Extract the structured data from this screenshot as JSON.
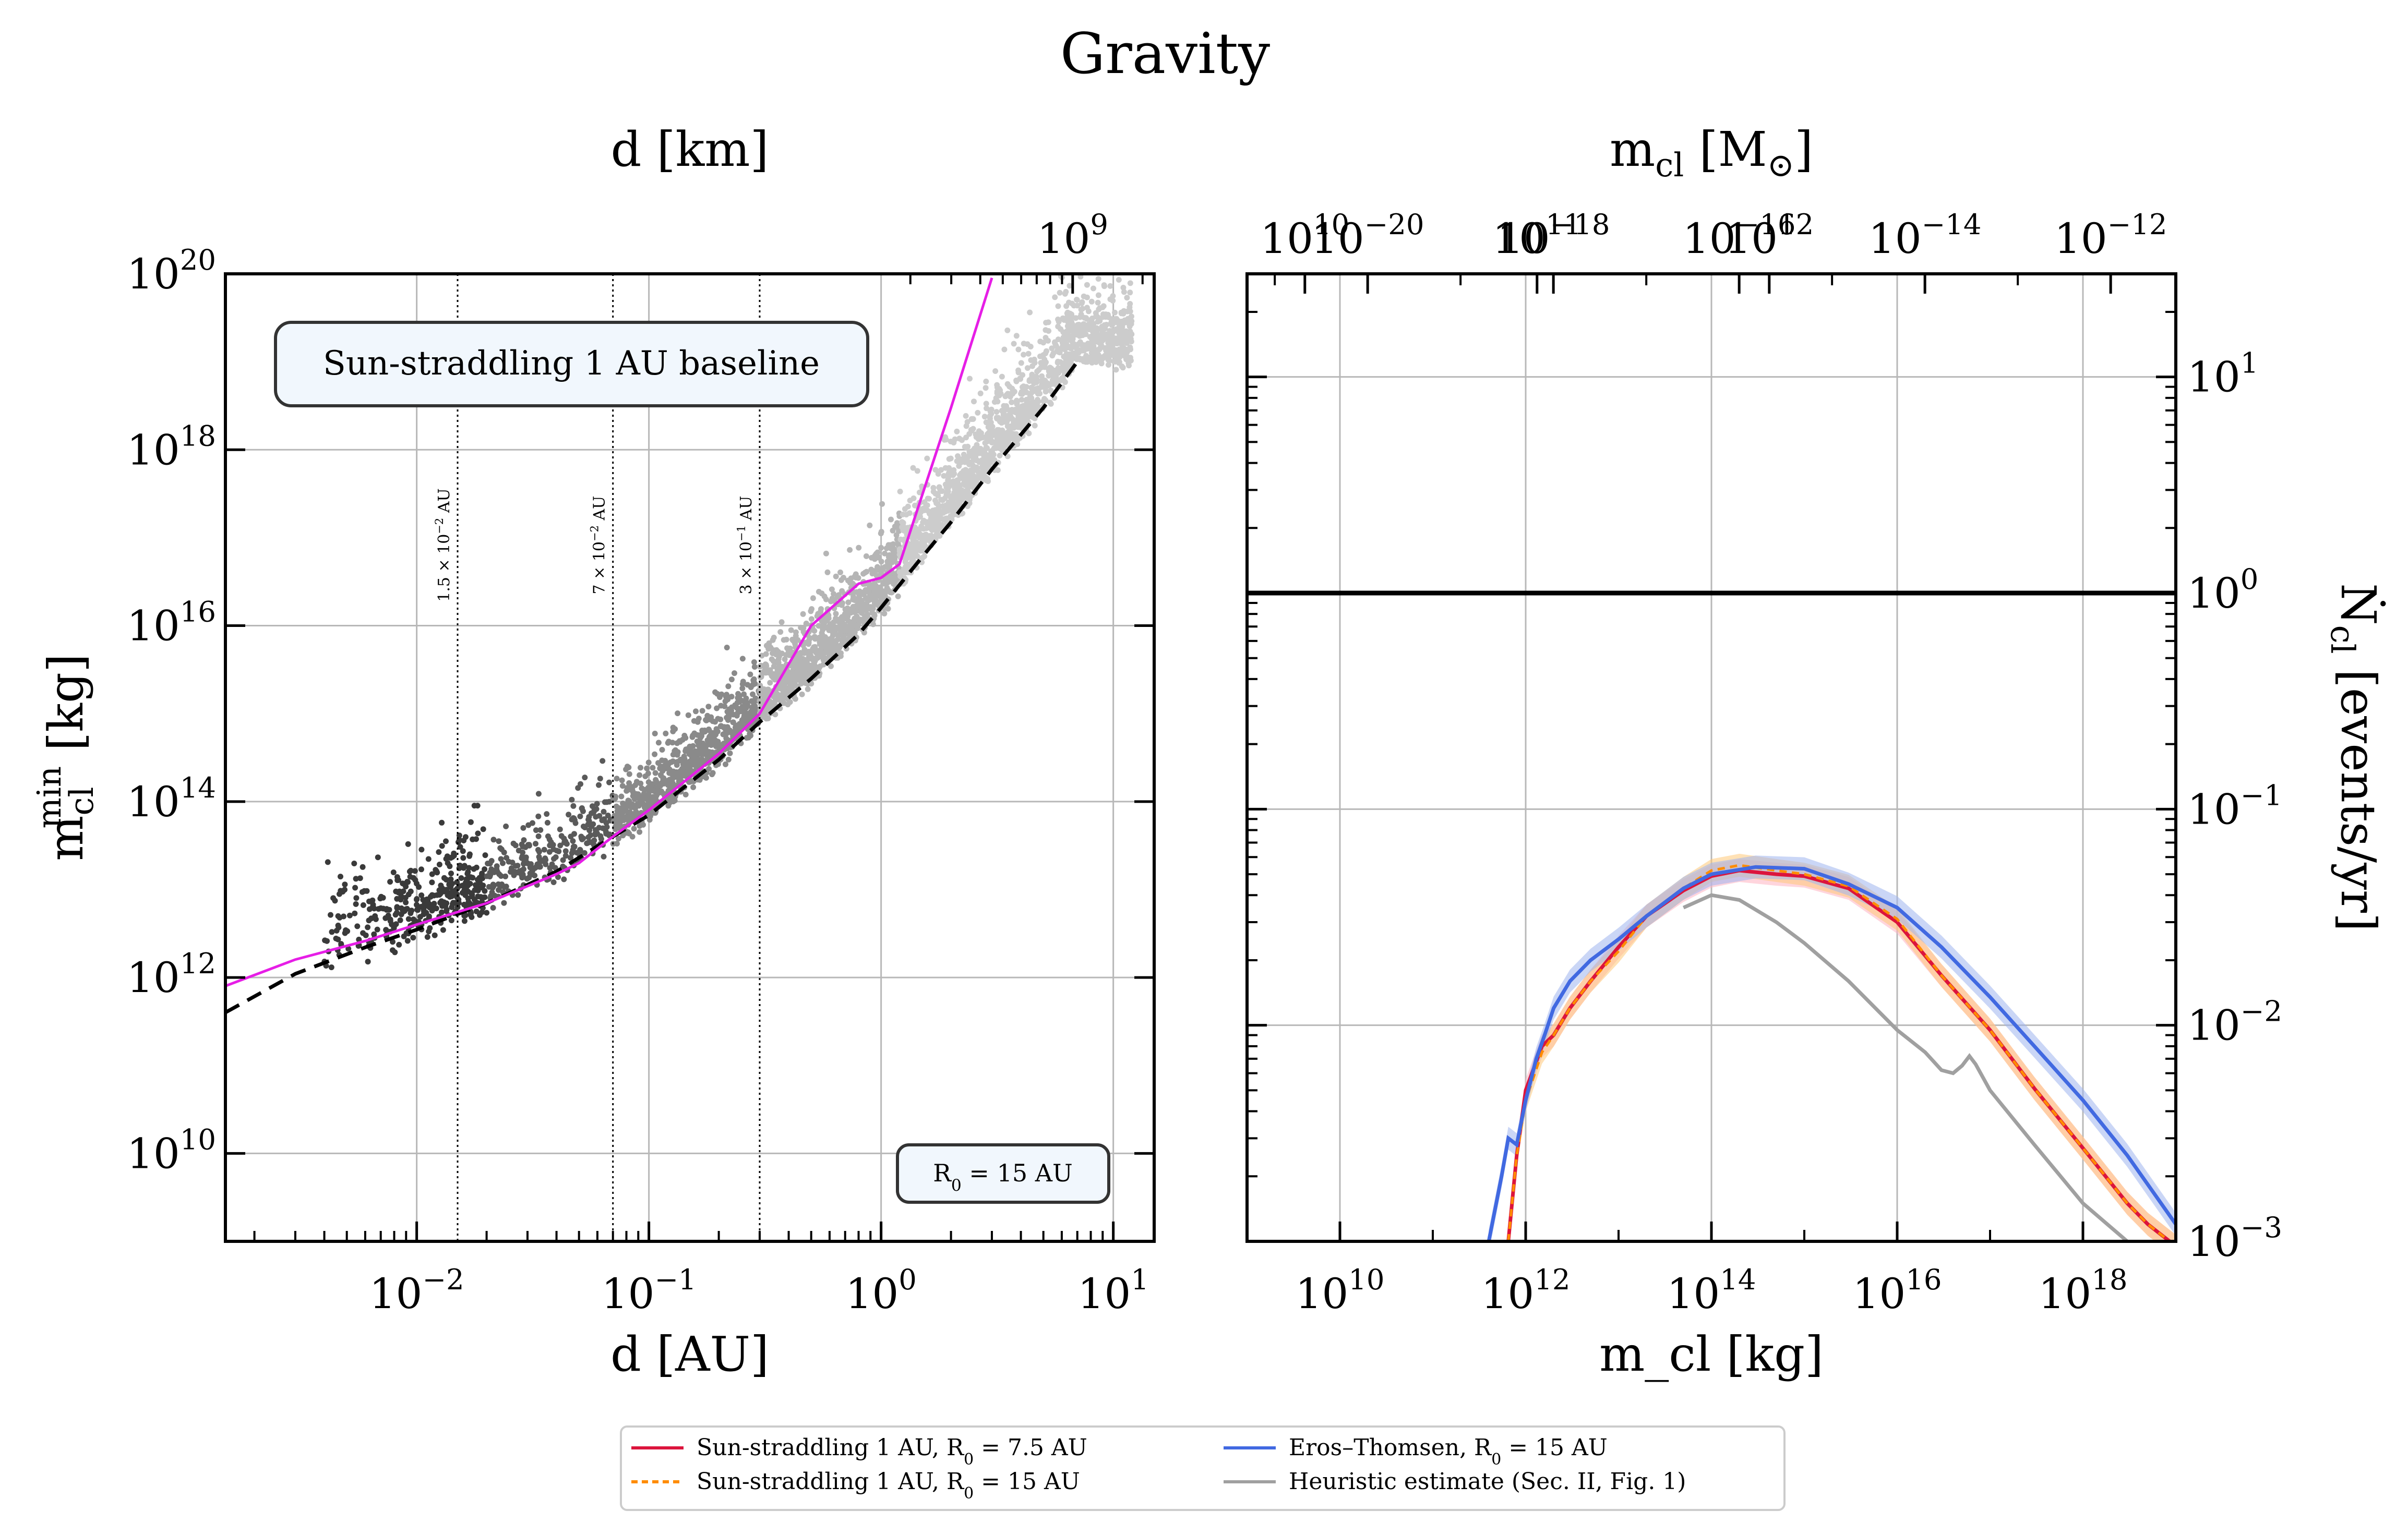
{
  "figure": {
    "title": "Gravity"
  },
  "chart_data": [
    {
      "type": "scatter",
      "panel": "left",
      "xlabel": "d [AU]",
      "ylabel": "m_cl^min [kg]",
      "x2label": "d [km]",
      "xscale": "log",
      "yscale": "log",
      "xlim": [
        0.0015,
        15
      ],
      "ylim": [
        1000000000.0,
        1e+20
      ],
      "grid": true,
      "xtick_labels": [
        "10^-2",
        "10^-1",
        "10^0",
        "10^1"
      ],
      "ytick_labels": [
        "10^10",
        "10^12",
        "10^14",
        "10^16",
        "10^18",
        "10^20"
      ],
      "x2tick_labels": [
        "10^9",
        "10^10",
        "10^11",
        "10^12"
      ],
      "badge_main": "Sun-straddling 1 AU baseline",
      "badge_corner": "R_0 = 15 AU",
      "vlines": [
        {
          "x": 0.015,
          "label": "1.5 × 10^-2 AU"
        },
        {
          "x": 0.07,
          "label": "7 × 10^-2 AU"
        },
        {
          "x": 0.3,
          "label": "3 × 10^-1 AU"
        }
      ],
      "series": [
        {
          "style": "dashed-black",
          "x": [
            0.0015,
            0.003,
            0.006,
            0.01,
            0.02,
            0.04,
            0.07,
            0.1,
            0.2,
            0.3,
            0.5,
            0.8,
            1.0,
            1.5,
            2.0,
            3.0,
            5.0,
            7.0
          ],
          "y": [
            400000000000.0,
            1100000000000.0,
            2200000000000.0,
            3500000000000.0,
            7000000000000.0,
            16000000000000.0,
            40000000000000.0,
            70000000000000.0,
            300000000000000.0,
            800000000000000.0,
            2500000000000000.0,
            8000000000000000.0,
            1.6e+16,
            6e+16,
            1.5e+17,
            6e+17,
            3e+18,
            1e+19
          ]
        },
        {
          "style": "solid-magenta",
          "x": [
            0.0015,
            0.003,
            0.006,
            0.01,
            0.02,
            0.04,
            0.05,
            0.07,
            0.1,
            0.2,
            0.3,
            0.5,
            0.8,
            1.0,
            1.2,
            1.5,
            2.0,
            3.0
          ],
          "y": [
            800000000000.0,
            1600000000000.0,
            2600000000000.0,
            4000000000000.0,
            7000000000000.0,
            15000000000000.0,
            20000000000000.0,
            40000000000000.0,
            80000000000000.0,
            350000000000000.0,
            1000000000000000.0,
            1e+16,
            3e+16,
            3.5e+16,
            5e+16,
            3e+17,
            3e+18,
            9e+19
          ]
        }
      ]
    },
    {
      "type": "line",
      "panel": "right",
      "xlabel": "m_cl [kg]",
      "ylabel": "Ṅ_cl [events/yr]",
      "x2label": "m_cl [M_⊙]",
      "xscale": "log",
      "yscale": "log",
      "xlim": [
        1000000000.0,
        1e+19
      ],
      "ylim": [
        0.001,
        30
      ],
      "grid": true,
      "hline": 1,
      "xtick_labels": [
        "10^10",
        "10^12",
        "10^14",
        "10^16",
        "10^18"
      ],
      "ytick_labels": [
        "10^-3",
        "10^-2",
        "10^-1",
        "10^0",
        "10^1"
      ],
      "x2tick_labels": [
        "10^-20",
        "10^-18",
        "10^-16",
        "10^-14",
        "10^-12"
      ],
      "series": [
        {
          "name": "Sun-straddling 1 AU, R_0 = 7.5 AU",
          "color": "#dc143c",
          "x": [
            650000000000.0,
            800000000000.0,
            1000000000000.0,
            1500000000000.0,
            2000000000000.0,
            3000000000000.0,
            5000000000000.0,
            10000000000000.0,
            20000000000000.0,
            50000000000000.0,
            100000000000000.0,
            200000000000000.0,
            500000000000000.0,
            1000000000000000.0,
            3000000000000000.0,
            1e+16,
            3e+16,
            1e+17,
            3e+17,
            1e+18,
            3e+18,
            5e+18,
            1e+19
          ],
          "y": [
            0.001,
            0.0025,
            0.005,
            0.008,
            0.009,
            0.012,
            0.016,
            0.023,
            0.032,
            0.042,
            0.049,
            0.052,
            0.05,
            0.049,
            0.043,
            0.03,
            0.017,
            0.0095,
            0.0051,
            0.0027,
            0.0015,
            0.0012,
            0.00095
          ]
        },
        {
          "name": "Sun-straddling 1 AU, R_0 = 15 AU",
          "color": "#ff8c00",
          "x": [
            650000000000.0,
            800000000000.0,
            1000000000000.0,
            1500000000000.0,
            2000000000000.0,
            3000000000000.0,
            5000000000000.0,
            10000000000000.0,
            20000000000000.0,
            50000000000000.0,
            100000000000000.0,
            200000000000000.0,
            500000000000000.0,
            1000000000000000.0,
            3000000000000000.0,
            1e+16,
            3e+16,
            1e+17,
            3e+17,
            1e+18,
            3e+18,
            5e+18,
            1e+19
          ],
          "y": [
            0.001,
            0.0025,
            0.0045,
            0.0075,
            0.009,
            0.012,
            0.016,
            0.022,
            0.032,
            0.043,
            0.052,
            0.055,
            0.052,
            0.05,
            0.044,
            0.031,
            0.017,
            0.0095,
            0.0051,
            0.0027,
            0.0015,
            0.0012,
            0.00095
          ]
        },
        {
          "name": "Eros–Thomsen, R_0 = 15 AU",
          "color": "#4169e1",
          "x": [
            400000000000.0,
            550000000000.0,
            650000000000.0,
            800000000000.0,
            1000000000000.0,
            1300000000000.0,
            1600000000000.0,
            2000000000000.0,
            3000000000000.0,
            5000000000000.0,
            10000000000000.0,
            20000000000000.0,
            50000000000000.0,
            100000000000000.0,
            300000000000000.0,
            1000000000000000.0,
            3000000000000000.0,
            1e+16,
            3e+16,
            1e+17,
            3e+17,
            1e+18,
            3e+18,
            1e+19
          ],
          "y": [
            0.001,
            0.002,
            0.003,
            0.0028,
            0.0045,
            0.007,
            0.009,
            0.012,
            0.016,
            0.02,
            0.025,
            0.032,
            0.043,
            0.05,
            0.054,
            0.053,
            0.045,
            0.035,
            0.023,
            0.0135,
            0.008,
            0.0045,
            0.0025,
            0.0012
          ]
        },
        {
          "name": "Heuristic estimate (Sec. II, Fig. 1)",
          "color": "#a0a0a0",
          "x": [
            50000000000000.0,
            100000000000000.0,
            200000000000000.0,
            500000000000000.0,
            1000000000000000.0,
            3000000000000000.0,
            1e+16,
            2e+16,
            3e+16,
            4e+16,
            5e+16,
            6e+16,
            7e+16,
            1e+17,
            3e+17,
            1e+18,
            3e+18
          ],
          "y": [
            0.035,
            0.04,
            0.038,
            0.03,
            0.024,
            0.016,
            0.0095,
            0.0075,
            0.0062,
            0.006,
            0.0065,
            0.0072,
            0.0066,
            0.005,
            0.0028,
            0.0015,
            0.001
          ]
        }
      ]
    }
  ],
  "legend": {
    "items": [
      {
        "label": "Sun-straddling 1 AU, R_0 = 7.5 AU",
        "color": "#dc143c",
        "dash": false
      },
      {
        "label": "Sun-straddling 1 AU, R_0 = 15 AU",
        "color": "#ff8c00",
        "dash": true
      },
      {
        "label": "Eros–Thomsen, R_0 = 15 AU",
        "color": "#4169e1",
        "dash": false
      },
      {
        "label": "Heuristic estimate (Sec. II, Fig. 1)",
        "color": "#a0a0a0",
        "dash": false
      }
    ]
  }
}
